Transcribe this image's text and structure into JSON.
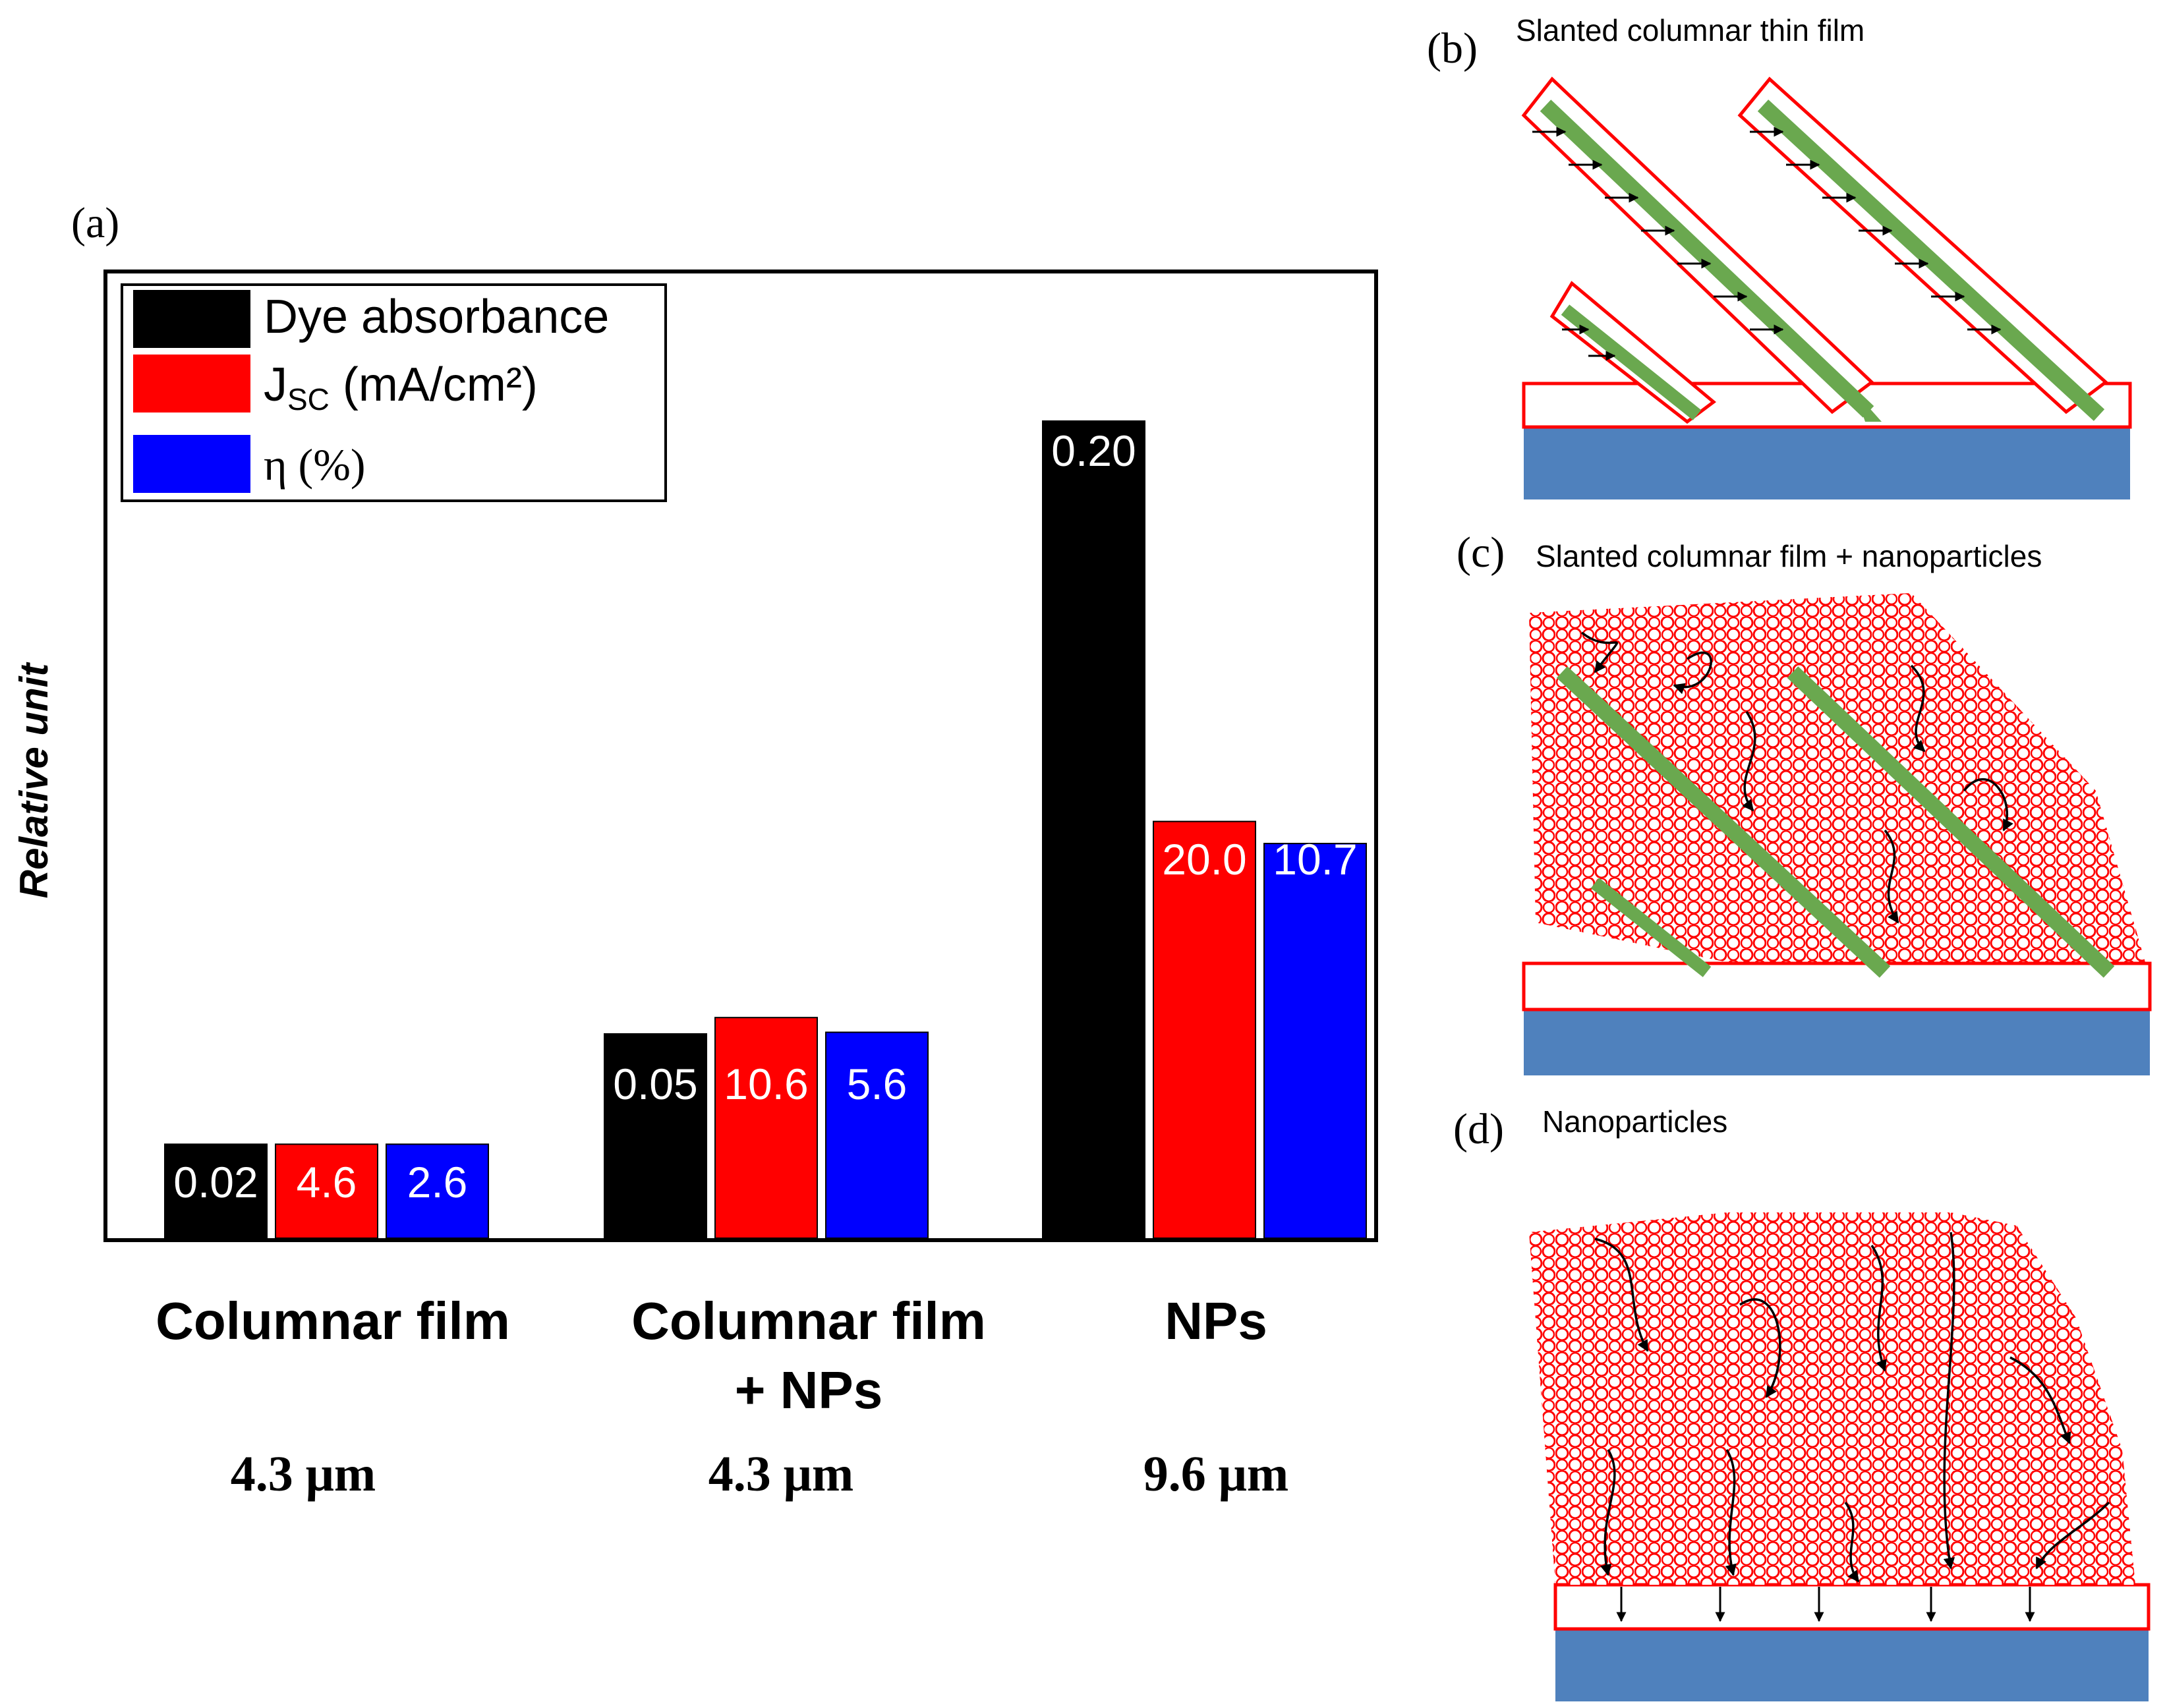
{
  "panel_labels": {
    "a": "(a)",
    "b": "(b)",
    "c": "(c)",
    "d": "(d)"
  },
  "schematics": {
    "b": {
      "title": "Slanted columnar thin film"
    },
    "c": {
      "title": "Slanted columnar film + nanoparticles"
    },
    "d": {
      "title": "Nanoparticles"
    }
  },
  "chart_data": {
    "type": "bar",
    "ylabel": "Relative unit",
    "categories": [
      "Columnar film",
      "Columnar film + NPs",
      "NPs"
    ],
    "category_lines": [
      [
        "Columnar film"
      ],
      [
        "Columnar film",
        "+ NPs"
      ],
      [
        "NPs"
      ]
    ],
    "thickness": [
      "4.3 μm",
      "4.3 μm",
      "9.6 μm"
    ],
    "ylim": [
      0,
      1.0
    ],
    "series": [
      {
        "name": "Dye absorbance",
        "name_main": "Dye absorbance",
        "name_sub": "",
        "name_tail": "",
        "color": "#000000",
        "values": [
          0.02,
          0.05,
          0.2
        ],
        "labels": [
          "0.02",
          "0.05",
          "0.20"
        ],
        "relative_heights": [
          0.115,
          0.25,
          1.0
        ]
      },
      {
        "name": "JSC (mA/cm²)",
        "name_main": "J",
        "name_sub": "SC",
        "name_tail": " (mA/cm²)",
        "color": "#ff0000",
        "values": [
          4.6,
          10.6,
          20.0
        ],
        "labels": [
          "4.6",
          "10.6",
          "20.0"
        ],
        "relative_heights": [
          0.115,
          0.27,
          0.51
        ]
      },
      {
        "name": "η (%)",
        "name_main": "η (%)",
        "name_sub": "",
        "name_tail": "",
        "color": "#0000ff",
        "values": [
          2.6,
          5.6,
          10.7
        ],
        "labels": [
          "2.6",
          "5.6",
          "10.7"
        ],
        "relative_heights": [
          0.115,
          0.252,
          0.483
        ]
      }
    ],
    "legend_position": "top-left",
    "grid": false
  }
}
